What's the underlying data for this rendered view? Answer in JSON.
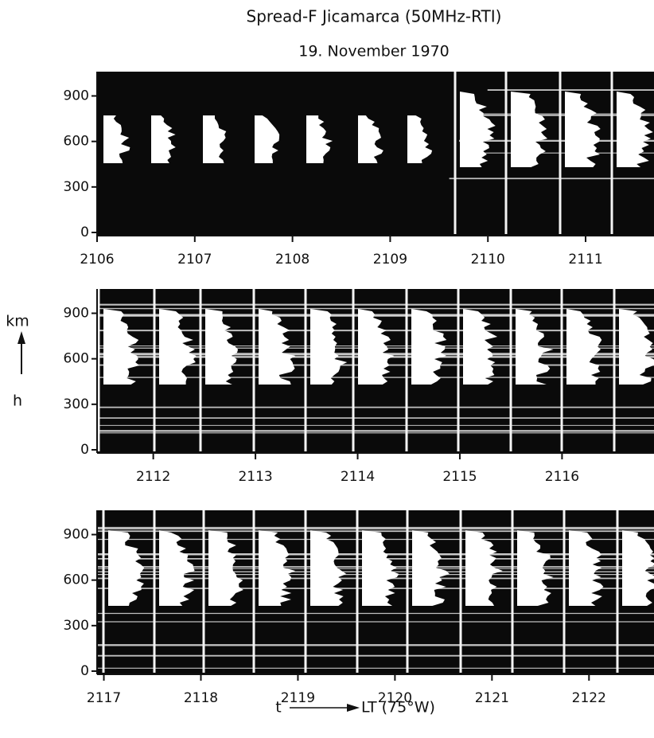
{
  "chart_data": [
    {
      "type": "rti",
      "title": "Spread-F Jicamarca (50MHz-RTI)",
      "subtitle": "19. November 1970",
      "xlim": [
        2106,
        2111.7
      ],
      "xticks": [
        2106,
        2107,
        2108,
        2109,
        2110,
        2111
      ],
      "ylim": [
        0,
        1060
      ],
      "yticks": [
        0,
        300,
        600,
        900
      ]
    },
    {
      "type": "rti",
      "y_label": "km",
      "y_arrow_label": "h",
      "xlim": [
        2111.45,
        2116.9
      ],
      "xticks": [
        2112,
        2113,
        2114,
        2115,
        2116
      ],
      "ylim": [
        0,
        1060
      ],
      "yticks": [
        0,
        300,
        600,
        900
      ]
    },
    {
      "type": "rti",
      "x_arrow_label": "t",
      "x_label": "LT (75°W)",
      "xlim": [
        2116.93,
        2122.67
      ],
      "xticks": [
        2117,
        2118,
        2119,
        2120,
        2121,
        2122
      ],
      "ylim": [
        0,
        1060
      ],
      "yticks": [
        0,
        300,
        600,
        900
      ]
    }
  ]
}
